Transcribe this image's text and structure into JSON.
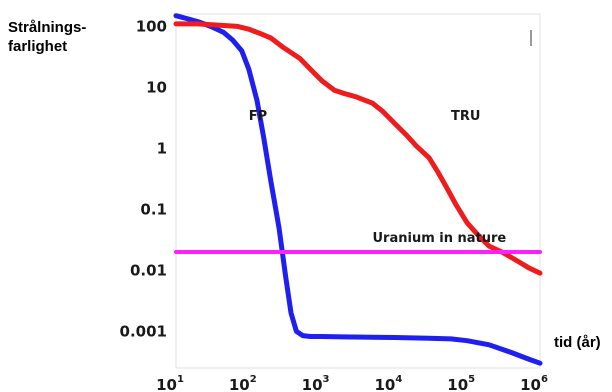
{
  "chart_data": {
    "type": "line",
    "title": "",
    "ylabel_lines": [
      "Strålnings-",
      "farlighet"
    ],
    "xlabel": "tid (år)",
    "xscale": "log",
    "yscale": "log",
    "xlim": [
      10,
      1000000
    ],
    "ylim": [
      0.00025,
      160
    ],
    "x_ticks": [
      {
        "value": 10,
        "base": "10",
        "exp": "1"
      },
      {
        "value": 100,
        "base": "10",
        "exp": "2"
      },
      {
        "value": 1000,
        "base": "10",
        "exp": "3"
      },
      {
        "value": 10000,
        "base": "10",
        "exp": "4"
      },
      {
        "value": 100000,
        "base": "10",
        "exp": "5"
      },
      {
        "value": 1000000,
        "base": "10",
        "exp": "6"
      }
    ],
    "y_ticks": [
      {
        "value": 100,
        "label": "100"
      },
      {
        "value": 10,
        "label": "10"
      },
      {
        "value": 1,
        "label": "1"
      },
      {
        "value": 0.1,
        "label": "0.1"
      },
      {
        "value": 0.01,
        "label": "0.01"
      },
      {
        "value": 0.001,
        "label": "0.001"
      }
    ],
    "series": [
      {
        "name": "FP",
        "color": "#1f1ff0",
        "x": [
          10,
          14,
          20,
          30,
          45,
          60,
          80,
          100,
          130,
          160,
          200,
          260,
          320,
          380,
          450,
          550,
          700,
          1000,
          2000,
          5000,
          10000,
          30000,
          60000,
          100000,
          200000,
          400000,
          700000,
          1000000
        ],
        "y": [
          150,
          135,
          120,
          100,
          80,
          60,
          40,
          20,
          6,
          1.5,
          0.3,
          0.05,
          0.008,
          0.002,
          0.001,
          0.00085,
          0.00082,
          0.00082,
          0.00081,
          0.0008,
          0.00079,
          0.00077,
          0.00075,
          0.0007,
          0.0006,
          0.00045,
          0.00035,
          0.0003
        ]
      },
      {
        "name": "TRU",
        "color": "#ee1c1c",
        "x": [
          10,
          20,
          40,
          70,
          100,
          150,
          200,
          300,
          500,
          700,
          1000,
          1500,
          2000,
          3000,
          5000,
          7000,
          10000,
          15000,
          20000,
          30000,
          40000,
          50000,
          70000,
          100000,
          150000,
          200000,
          300000,
          500000,
          700000,
          1000000
        ],
        "y": [
          110,
          110,
          105,
          100,
          90,
          75,
          65,
          45,
          30,
          20,
          13,
          9,
          8,
          7,
          5.5,
          4,
          2.6,
          1.6,
          1.1,
          0.7,
          0.4,
          0.25,
          0.12,
          0.06,
          0.035,
          0.025,
          0.02,
          0.014,
          0.011,
          0.009
        ]
      },
      {
        "name": "Uranium in nature",
        "color": "#ff1fff",
        "x": [
          10,
          1000000
        ],
        "y": [
          0.02,
          0.02
        ]
      }
    ],
    "annotations": [
      {
        "text": "FP",
        "x": 100,
        "y": 3.5
      },
      {
        "text": "TRU",
        "x": 60000,
        "y": 3.5
      },
      {
        "text": "Uranium in nature",
        "x": 5000,
        "y": 0.035
      }
    ],
    "grid": false,
    "legend": "none"
  }
}
